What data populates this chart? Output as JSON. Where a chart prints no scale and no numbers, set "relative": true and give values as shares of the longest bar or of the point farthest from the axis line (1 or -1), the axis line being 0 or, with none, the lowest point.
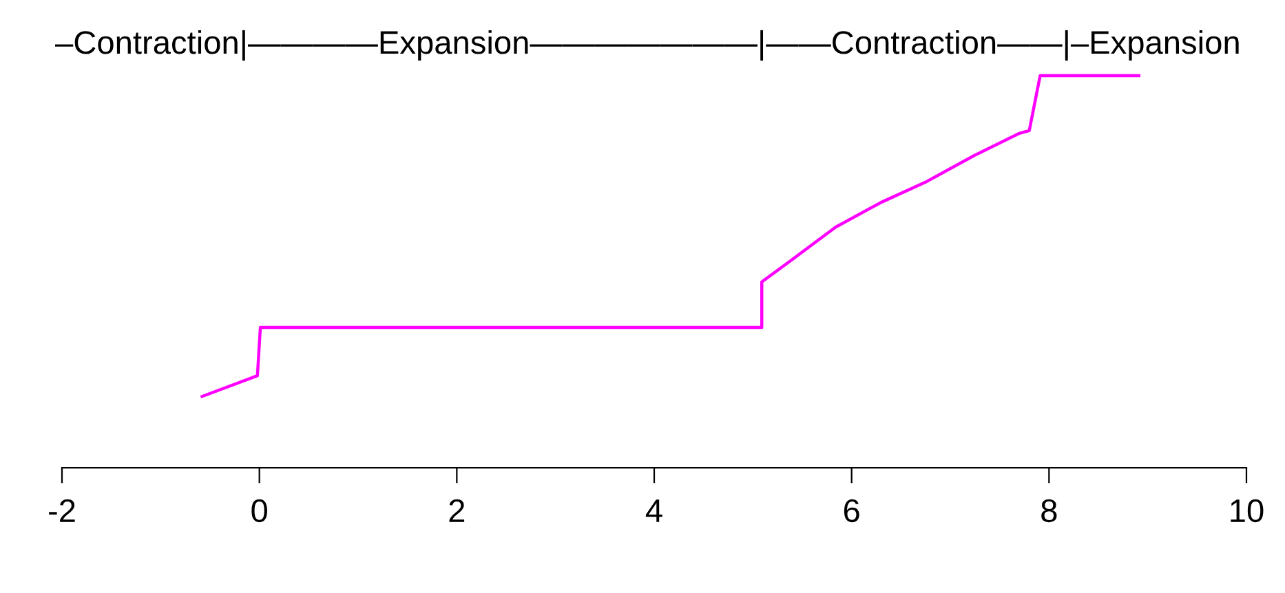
{
  "chart_data": {
    "type": "line",
    "relative": true,
    "x": [
      -0.58,
      -0.02,
      0.01,
      5.09,
      5.09,
      5.37,
      5.84,
      6.3,
      6.76,
      7.24,
      7.7,
      7.8,
      7.91,
      8.91
    ],
    "series": [
      {
        "color": "#ff00ff",
        "values": [
          0.182,
          0.235,
          0.358,
          0.358,
          0.474,
          0.526,
          0.614,
          0.677,
          0.73,
          0.796,
          0.853,
          0.86,
          1.0,
          1.0
        ]
      }
    ],
    "xlim": [
      -2,
      10
    ],
    "xticks": [
      -2,
      0,
      2,
      4,
      6,
      8,
      10
    ],
    "annotations": [
      "–Contraction|————Expansion———————|——Contraction——|–Expansion"
    ],
    "grid": false,
    "legend": false,
    "marker": "none",
    "line_style": "solid"
  }
}
